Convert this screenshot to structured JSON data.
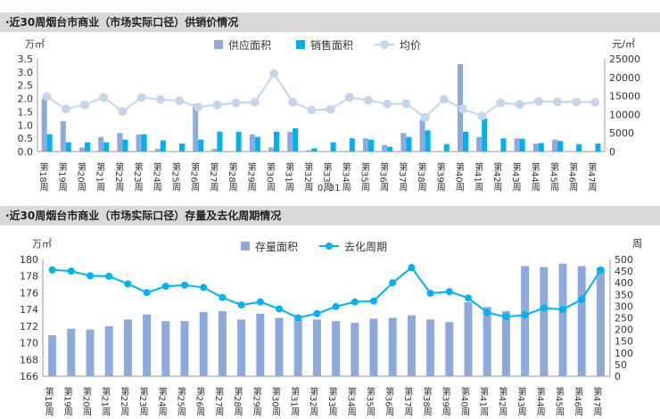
{
  "panels": [
    {
      "title": "·近30周烟台市商业（市场实际口径）供销价情况"
    },
    {
      "title": "·近30周烟台市商业（市场实际口径）存量及去化周期情况"
    }
  ],
  "colors": {
    "supply": "#8eaadb",
    "sales": "#00b0f0",
    "price": "#c5d6ea",
    "stock": "#8eaadb",
    "cycle": "#00b0f0"
  },
  "chart_data": [
    {
      "type": "bar",
      "title": "",
      "categories": [
        "第18周",
        "第19周",
        "第20周",
        "第21周",
        "第22周",
        "第23周",
        "第24周",
        "第25周",
        "第26周",
        "第27周",
        "第28周",
        "第29周",
        "第30周",
        "第31周",
        "第32周",
        "第33周",
        "第34周",
        "第35周",
        "第36周",
        "第37周",
        "第38周",
        "第39周",
        "第40周",
        "第41周",
        "第42周",
        "第43周",
        "第44周",
        "第45周",
        "第46周",
        "第47周"
      ],
      "ylabel_left": "万㎡",
      "ylabel_right": "元/㎡",
      "ylim_left": [
        0,
        3.5
      ],
      "ylim_right": [
        0,
        25000
      ],
      "yticks_left": [
        "0.0",
        "0.5",
        "1.0",
        "1.5",
        "2.0",
        "2.5",
        "3.0",
        "3.5"
      ],
      "yticks_right": [
        "0",
        "5000",
        "10000",
        "15000",
        "20000",
        "25000"
      ],
      "legend_position": "top",
      "annotation": "0, 31",
      "series": [
        {
          "name": "供应面积",
          "kind": "bar",
          "axis": "left",
          "values": [
            2.0,
            1.15,
            0.15,
            0.55,
            0.7,
            0.65,
            0.1,
            0.0,
            1.8,
            0.1,
            0.0,
            0.65,
            0.15,
            0.75,
            0.05,
            0.0,
            0.0,
            0.5,
            0.25,
            0.7,
            1.2,
            0.0,
            3.3,
            0.55,
            0.0,
            0.5,
            0.3,
            0.45,
            0.0,
            0.0
          ]
        },
        {
          "name": "销售面积",
          "kind": "bar",
          "axis": "left",
          "values": [
            0.65,
            0.35,
            0.35,
            0.35,
            0.45,
            0.65,
            0.42,
            0.3,
            0.45,
            0.75,
            0.75,
            0.55,
            0.75,
            0.88,
            0.12,
            0.35,
            0.5,
            0.45,
            0.18,
            0.55,
            0.8,
            0.28,
            0.75,
            1.25,
            0.5,
            0.48,
            0.32,
            0.4,
            0.28,
            0.3
          ]
        },
        {
          "name": "均价",
          "kind": "line",
          "axis": "right",
          "values": [
            14800,
            11500,
            12600,
            14600,
            10800,
            14600,
            14000,
            13700,
            12000,
            12600,
            13100,
            13300,
            21000,
            13300,
            11200,
            11400,
            14600,
            13800,
            12800,
            12900,
            9200,
            14100,
            11500,
            9600,
            13100,
            12700,
            13500,
            13400,
            13400,
            13300
          ]
        }
      ]
    },
    {
      "type": "bar",
      "title": "",
      "categories": [
        "第18周",
        "第19周",
        "第20周",
        "第21周",
        "第22周",
        "第23周",
        "第24周",
        "第25周",
        "第26周",
        "第27周",
        "第28周",
        "第29周",
        "第30周",
        "第31周",
        "第32周",
        "第33周",
        "第34周",
        "第35周",
        "第36周",
        "第37周",
        "第38周",
        "第39周",
        "第40周",
        "第41周",
        "第42周",
        "第43周",
        "第44周",
        "第45周",
        "第46周",
        "第47周"
      ],
      "ylabel_left": "万㎡",
      "ylabel_right": "周",
      "ylim_left": [
        166,
        180
      ],
      "ylim_right": [
        0,
        500
      ],
      "yticks_left": [
        "166",
        "168",
        "170",
        "172",
        "174",
        "176",
        "178",
        "180"
      ],
      "yticks_right": [
        "0",
        "50",
        "100",
        "150",
        "200",
        "250",
        "300",
        "350",
        "400",
        "450",
        "500"
      ],
      "legend_position": "top",
      "series": [
        {
          "name": "存量面积",
          "kind": "bar",
          "axis": "left",
          "values": [
            170.9,
            171.7,
            171.6,
            172.0,
            172.8,
            173.4,
            172.6,
            172.6,
            173.7,
            173.8,
            172.8,
            173.5,
            173.0,
            172.8,
            172.8,
            172.6,
            172.4,
            172.9,
            173.0,
            173.3,
            172.8,
            172.5,
            174.9,
            174.3,
            173.8,
            179.2,
            179.1,
            179.5,
            179.2,
            179.0
          ]
        },
        {
          "name": "去化周期",
          "kind": "line",
          "axis": "right",
          "values": [
            455,
            450,
            430,
            428,
            395,
            358,
            385,
            390,
            380,
            337,
            305,
            318,
            288,
            250,
            268,
            298,
            318,
            322,
            400,
            465,
            355,
            362,
            335,
            272,
            255,
            262,
            292,
            286,
            328,
            455
          ]
        }
      ]
    }
  ]
}
